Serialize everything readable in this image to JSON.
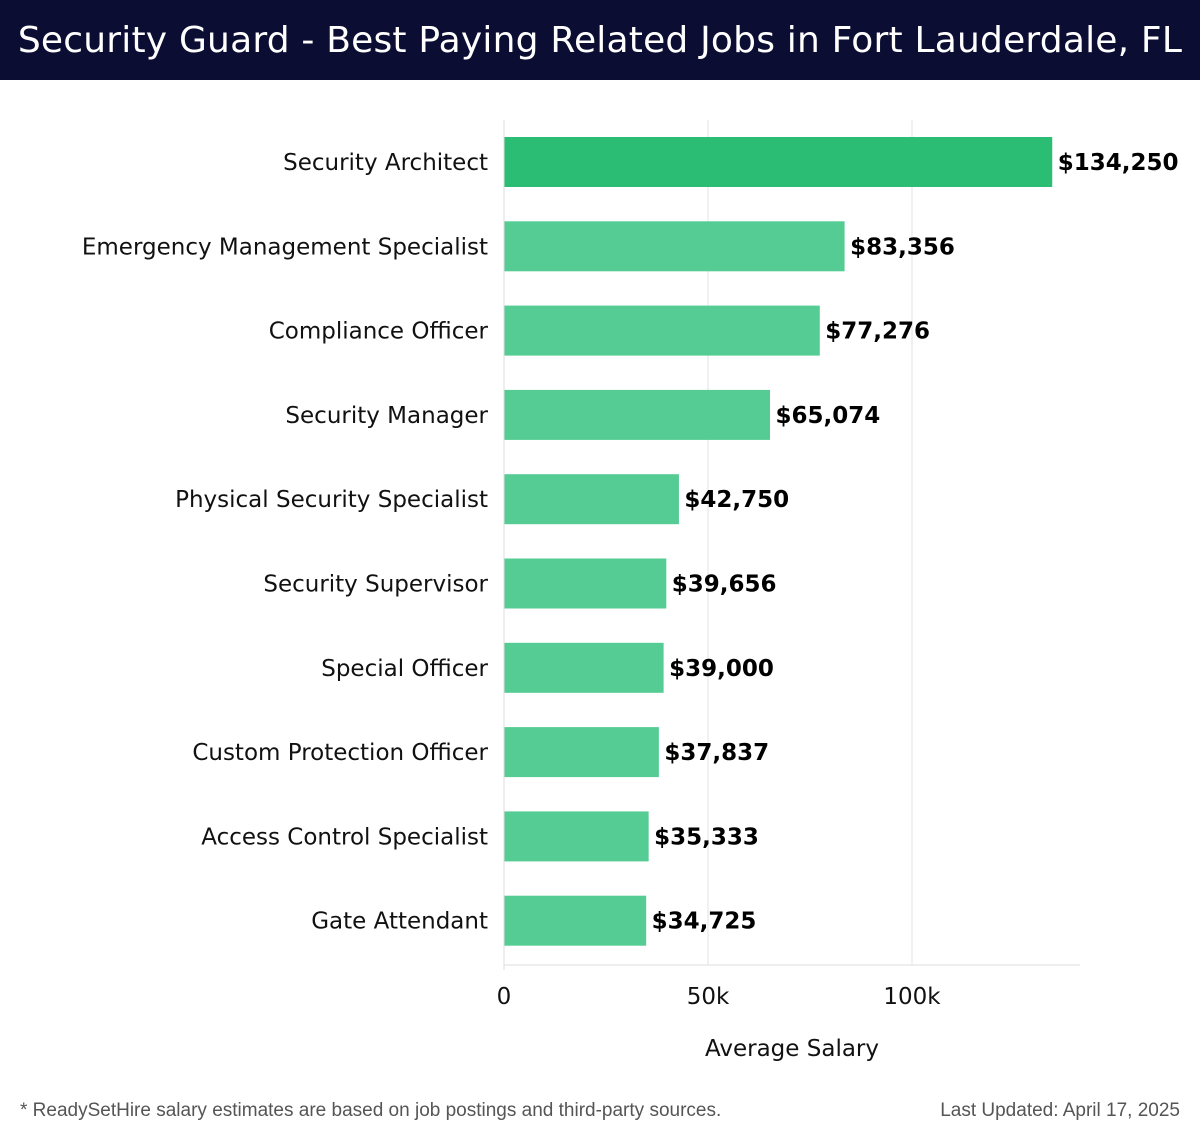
{
  "header": {
    "title": "Security Guard - Best Paying Related Jobs in Fort Lauderdale, FL"
  },
  "chart_data": {
    "type": "bar",
    "orientation": "horizontal",
    "title": "Security Guard - Best Paying Related Jobs in Fort Lauderdale, FL",
    "xlabel": "Average Salary",
    "ylabel": "",
    "xlim": [
      0,
      140000
    ],
    "x_ticks": [
      0,
      50000,
      100000
    ],
    "x_tick_labels": [
      "0",
      "50k",
      "100k"
    ],
    "grid": "vertical",
    "categories": [
      "Security Architect",
      "Emergency Management Specialist",
      "Compliance Officer",
      "Security Manager",
      "Physical Security Specialist",
      "Security Supervisor",
      "Special Officer",
      "Custom Protection Officer",
      "Access Control Specialist",
      "Gate Attendant"
    ],
    "values": [
      134250,
      83356,
      77276,
      65074,
      42750,
      39656,
      39000,
      37837,
      35333,
      34725
    ],
    "value_labels": [
      "$134,250",
      "$83,356",
      "$77,276",
      "$65,074",
      "$42,750",
      "$39,656",
      "$39,000",
      "$37,837",
      "$35,333",
      "$34,725"
    ],
    "colors": {
      "bar_top": "#2bbd74",
      "bar_rest": "#55cc93"
    }
  },
  "footer": {
    "note": "* ReadySetHire salary estimates are based on job postings and third-party sources.",
    "updated": "Last Updated: April 17, 2025"
  }
}
